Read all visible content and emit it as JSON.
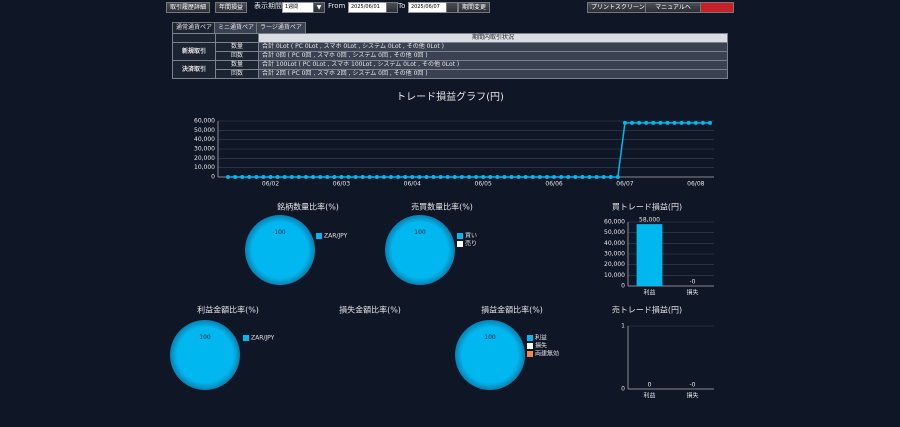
{
  "toolbar": {
    "buttons_left": [
      "取引履歴詳細",
      "年間損益"
    ],
    "period_label": "表示期間",
    "period_select": "1週間",
    "from_label": "From",
    "from_date": "2025/06/01",
    "to_label": "To",
    "to_date": "2025/06/07",
    "change_button": "期間変更",
    "buttons_right": [
      "プリントスクリーン",
      "マニュアルへ"
    ]
  },
  "summary": {
    "tabs": [
      "通常通貨ペア",
      "ミニ通貨ペア",
      "ラージ通貨ペア"
    ],
    "header": "期間内取引状況",
    "groups": [
      {
        "name": "新規取引",
        "rows": [
          [
            "数量",
            "合計 0Lot ( PC 0Lot , スマホ 0Lot , システム 0Lot , その他 0Lot )"
          ],
          [
            "回数",
            "合計 0回 ( PC 0回 , スマホ 0回 , システム 0回 , その他 0回 )"
          ]
        ]
      },
      {
        "name": "決済取引",
        "rows": [
          [
            "数量",
            "合計 100Lot ( PC 0Lot , スマホ 100Lot , システム 0Lot , その他 0Lot )"
          ],
          [
            "回数",
            "合計 2回 ( PC 0回 , スマホ 2回 , システム 0回 , その他 0回 )"
          ]
        ]
      }
    ]
  },
  "chart_data": [
    {
      "type": "line",
      "title": "トレード損益グラフ(円)",
      "color": "#00b7ef",
      "categories": [
        null,
        null,
        null,
        null,
        null,
        null,
        "06/02",
        null,
        null,
        null,
        null,
        null,
        null,
        null,
        null,
        null,
        "06/03",
        null,
        null,
        null,
        null,
        null,
        null,
        null,
        null,
        null,
        "06/04",
        null,
        null,
        null,
        null,
        null,
        null,
        null,
        null,
        null,
        "06/05",
        null,
        null,
        null,
        null,
        null,
        null,
        null,
        null,
        null,
        "06/06",
        null,
        null,
        null,
        null,
        null,
        null,
        null,
        null,
        null,
        "06/07",
        null,
        null,
        null,
        null,
        null,
        null,
        null,
        null,
        null,
        "06/08",
        null,
        null
      ],
      "values": [
        0,
        0,
        0,
        0,
        0,
        0,
        0,
        0,
        0,
        0,
        0,
        0,
        0,
        0,
        0,
        0,
        0,
        0,
        0,
        0,
        0,
        0,
        0,
        0,
        0,
        0,
        0,
        0,
        0,
        0,
        0,
        0,
        0,
        0,
        0,
        0,
        0,
        0,
        0,
        0,
        0,
        0,
        0,
        0,
        0,
        0,
        0,
        0,
        0,
        0,
        0,
        0,
        0,
        0,
        0,
        0,
        58000,
        58000,
        58000,
        58000,
        58000,
        58000,
        58000,
        58000,
        58000,
        58000,
        58000,
        58000,
        58000
      ],
      "ylim": [
        0,
        60000
      ],
      "yticks": [
        0,
        {
          "value": 10000,
          "label": "10,000"
        },
        {
          "value": 20000,
          "label": "20,000"
        },
        {
          "value": 30000,
          "label": "30,000"
        },
        {
          "value": 40000,
          "label": "40,000"
        },
        {
          "value": 50000,
          "label": "50,000"
        },
        {
          "value": 60000,
          "label": "60,000"
        }
      ],
      "grid": true
    },
    {
      "type": "pie",
      "title": "銘柄数量比率(%)",
      "categories": [
        "ZAR/JPY"
      ],
      "values": [
        100
      ],
      "colors": [
        "#00b7ef"
      ]
    },
    {
      "type": "pie",
      "title": "売買数量比率(%)",
      "categories": [
        "買い",
        "売り"
      ],
      "values": [
        100,
        0
      ],
      "colors": [
        "#00b7ef",
        "#ffffff"
      ]
    },
    {
      "type": "bar",
      "title": "買トレード損益(円)",
      "categories": [
        "利益",
        "損失"
      ],
      "values": [
        58000,
        0
      ],
      "value_labels": [
        "58,000",
        "-0"
      ],
      "color": "#00b7ef",
      "ylim": [
        0,
        60000
      ],
      "yticks": [
        0,
        {
          "value": 10000,
          "label": "10,000"
        },
        {
          "value": 20000,
          "label": "20,000"
        },
        {
          "value": 30000,
          "label": "30,000"
        },
        {
          "value": 40000,
          "label": "40,000"
        },
        {
          "value": 50000,
          "label": "50,000"
        },
        {
          "value": 60000,
          "label": "60,000"
        }
      ],
      "grid": true
    },
    {
      "type": "pie",
      "title": "利益金額比率(%)",
      "categories": [
        "ZAR/JPY"
      ],
      "values": [
        100
      ],
      "colors": [
        "#00b7ef"
      ]
    },
    {
      "type": "pie",
      "title": "損失金額比率(%)"
    },
    {
      "type": "pie",
      "title": "損益金額比率(%)",
      "categories": [
        "利益",
        "損失",
        "両建無効"
      ],
      "values": [
        100,
        0,
        0
      ],
      "colors": [
        "#00b7ef",
        "#ffffff",
        "#f08a4b"
      ]
    },
    {
      "type": "bar",
      "title": "売トレード損益(円)",
      "categories": [
        "利益",
        "損失"
      ],
      "values": [
        0,
        0
      ],
      "value_labels": [
        "0",
        "-0"
      ],
      "color": "#00b7ef",
      "ylim": [
        0,
        1
      ],
      "yticks": [
        0,
        1
      ],
      "grid": true
    }
  ]
}
